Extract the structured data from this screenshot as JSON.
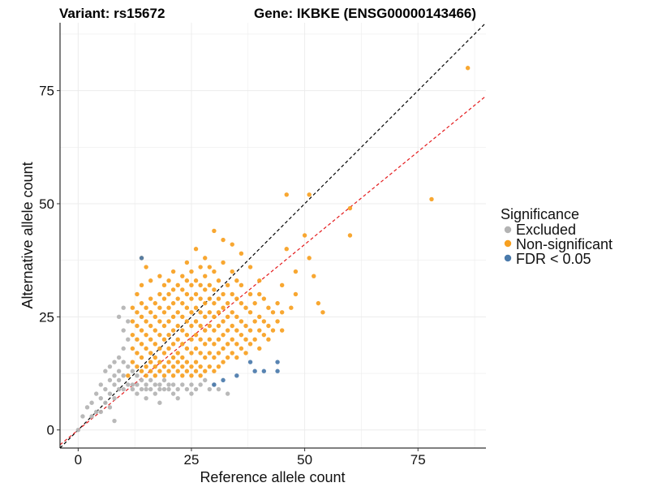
{
  "chart_data": {
    "type": "scatter",
    "title_left": "Variant: rs15672",
    "title_right": "Gene: IKBKE (ENSG00000143466)",
    "xlabel": "Reference allele count",
    "ylabel": "Alternative allele count",
    "xlim": [
      -4,
      90
    ],
    "ylim": [
      -4,
      90
    ],
    "xticks": [
      0,
      25,
      50,
      75
    ],
    "yticks": [
      0,
      25,
      50,
      75
    ],
    "grid": true,
    "legend": {
      "title": "Significance",
      "placement": "right",
      "entries": [
        {
          "label": "Excluded",
          "color": "#b3b3b3"
        },
        {
          "label": "Non-significant",
          "color": "#f7a020"
        },
        {
          "label": "FDR < 0.05",
          "color": "#4a7aab"
        }
      ]
    },
    "reference_lines": [
      {
        "name": "identity",
        "slope": 1.0,
        "intercept": 0,
        "color": "#000000",
        "dash": true
      },
      {
        "name": "fit",
        "slope": 0.82,
        "intercept": 0,
        "color": "#e41a1c",
        "dash": true
      }
    ],
    "series": [
      {
        "name": "Excluded",
        "color": "#b3b3b3",
        "points": [
          [
            0,
            0
          ],
          [
            1,
            3
          ],
          [
            2,
            5
          ],
          [
            3,
            6
          ],
          [
            3,
            3
          ],
          [
            4,
            4
          ],
          [
            4,
            8
          ],
          [
            5,
            7
          ],
          [
            5,
            4
          ],
          [
            5,
            10
          ],
          [
            6,
            6
          ],
          [
            6,
            9
          ],
          [
            6,
            13
          ],
          [
            7,
            5
          ],
          [
            7,
            8
          ],
          [
            7,
            11
          ],
          [
            7,
            14
          ],
          [
            8,
            7
          ],
          [
            8,
            10
          ],
          [
            8,
            12
          ],
          [
            8,
            15
          ],
          [
            8,
            2
          ],
          [
            9,
            9
          ],
          [
            9,
            11
          ],
          [
            9,
            13
          ],
          [
            9,
            16
          ],
          [
            10,
            9
          ],
          [
            10,
            12
          ],
          [
            10,
            15
          ],
          [
            10,
            18
          ],
          [
            10,
            22
          ],
          [
            11,
            10
          ],
          [
            11,
            14
          ],
          [
            11,
            20
          ],
          [
            11,
            24
          ],
          [
            12,
            10
          ],
          [
            12,
            13
          ],
          [
            12,
            9
          ],
          [
            13,
            10
          ],
          [
            13,
            12
          ],
          [
            13,
            8
          ],
          [
            14,
            9
          ],
          [
            14,
            11
          ],
          [
            15,
            9
          ],
          [
            15,
            10
          ],
          [
            15,
            7
          ],
          [
            16,
            9
          ],
          [
            16,
            11
          ],
          [
            17,
            10
          ],
          [
            17,
            8
          ],
          [
            18,
            9
          ],
          [
            18,
            10
          ],
          [
            18,
            6
          ],
          [
            19,
            9
          ],
          [
            19,
            11
          ],
          [
            20,
            9
          ],
          [
            20,
            10
          ],
          [
            21,
            8
          ],
          [
            21,
            10
          ],
          [
            22,
            9
          ],
          [
            22,
            7
          ],
          [
            23,
            10
          ],
          [
            24,
            9
          ],
          [
            25,
            10
          ],
          [
            25,
            8
          ],
          [
            26,
            9
          ],
          [
            27,
            10
          ],
          [
            28,
            11
          ],
          [
            29,
            9
          ],
          [
            30,
            10
          ],
          [
            31,
            9
          ],
          [
            33,
            8
          ],
          [
            9,
            25
          ],
          [
            10,
            27
          ]
        ]
      },
      {
        "name": "Non-significant",
        "color": "#f7a020",
        "points": [
          [
            11,
            12
          ],
          [
            12,
            15
          ],
          [
            12,
            18
          ],
          [
            12,
            21
          ],
          [
            12,
            24
          ],
          [
            13,
            14
          ],
          [
            13,
            17
          ],
          [
            13,
            20
          ],
          [
            13,
            23
          ],
          [
            13,
            26
          ],
          [
            14,
            13
          ],
          [
            14,
            16
          ],
          [
            14,
            19
          ],
          [
            14,
            22
          ],
          [
            14,
            25
          ],
          [
            14,
            28
          ],
          [
            14,
            32
          ],
          [
            15,
            12
          ],
          [
            15,
            14
          ],
          [
            15,
            18
          ],
          [
            15,
            21
          ],
          [
            15,
            24
          ],
          [
            15,
            27
          ],
          [
            16,
            13
          ],
          [
            16,
            15
          ],
          [
            16,
            17
          ],
          [
            16,
            20
          ],
          [
            16,
            23
          ],
          [
            16,
            26
          ],
          [
            16,
            29
          ],
          [
            16,
            33
          ],
          [
            17,
            12
          ],
          [
            17,
            14
          ],
          [
            17,
            16
          ],
          [
            17,
            19
          ],
          [
            17,
            22
          ],
          [
            17,
            25
          ],
          [
            17,
            28
          ],
          [
            18,
            13
          ],
          [
            18,
            15
          ],
          [
            18,
            18
          ],
          [
            18,
            21
          ],
          [
            18,
            24
          ],
          [
            18,
            27
          ],
          [
            18,
            30
          ],
          [
            18,
            34
          ],
          [
            19,
            12
          ],
          [
            19,
            14
          ],
          [
            19,
            17
          ],
          [
            19,
            20
          ],
          [
            19,
            23
          ],
          [
            19,
            26
          ],
          [
            19,
            29
          ],
          [
            19,
            32
          ],
          [
            20,
            13
          ],
          [
            20,
            15
          ],
          [
            20,
            18
          ],
          [
            20,
            21
          ],
          [
            20,
            24
          ],
          [
            20,
            27
          ],
          [
            20,
            30
          ],
          [
            20,
            33
          ],
          [
            21,
            12
          ],
          [
            21,
            14
          ],
          [
            21,
            16
          ],
          [
            21,
            19
          ],
          [
            21,
            22
          ],
          [
            21,
            25
          ],
          [
            21,
            28
          ],
          [
            21,
            31
          ],
          [
            21,
            35
          ],
          [
            22,
            13
          ],
          [
            22,
            15
          ],
          [
            22,
            17
          ],
          [
            22,
            20
          ],
          [
            22,
            23
          ],
          [
            22,
            26
          ],
          [
            22,
            29
          ],
          [
            22,
            32
          ],
          [
            23,
            12
          ],
          [
            23,
            14
          ],
          [
            23,
            16
          ],
          [
            23,
            19
          ],
          [
            23,
            22
          ],
          [
            23,
            25
          ],
          [
            23,
            28
          ],
          [
            23,
            31
          ],
          [
            23,
            34
          ],
          [
            24,
            13
          ],
          [
            24,
            15
          ],
          [
            24,
            18
          ],
          [
            24,
            21
          ],
          [
            24,
            24
          ],
          [
            24,
            27
          ],
          [
            24,
            30
          ],
          [
            24,
            33
          ],
          [
            24,
            37
          ],
          [
            25,
            12
          ],
          [
            25,
            14
          ],
          [
            25,
            17
          ],
          [
            25,
            20
          ],
          [
            25,
            23
          ],
          [
            25,
            26
          ],
          [
            25,
            29
          ],
          [
            25,
            32
          ],
          [
            25,
            35
          ],
          [
            26,
            13
          ],
          [
            26,
            15
          ],
          [
            26,
            18
          ],
          [
            26,
            21
          ],
          [
            26,
            24
          ],
          [
            26,
            27
          ],
          [
            26,
            30
          ],
          [
            26,
            33
          ],
          [
            26,
            40
          ],
          [
            27,
            12
          ],
          [
            27,
            14
          ],
          [
            27,
            17
          ],
          [
            27,
            20
          ],
          [
            27,
            23
          ],
          [
            27,
            26
          ],
          [
            27,
            29
          ],
          [
            27,
            32
          ],
          [
            27,
            36
          ],
          [
            28,
            13
          ],
          [
            28,
            16
          ],
          [
            28,
            19
          ],
          [
            28,
            22
          ],
          [
            28,
            25
          ],
          [
            28,
            28
          ],
          [
            28,
            31
          ],
          [
            28,
            34
          ],
          [
            28,
            38
          ],
          [
            29,
            14
          ],
          [
            29,
            17
          ],
          [
            29,
            20
          ],
          [
            29,
            23
          ],
          [
            29,
            26
          ],
          [
            29,
            29
          ],
          [
            29,
            32
          ],
          [
            29,
            36
          ],
          [
            30,
            13
          ],
          [
            30,
            16
          ],
          [
            30,
            19
          ],
          [
            30,
            22
          ],
          [
            30,
            25
          ],
          [
            30,
            28
          ],
          [
            30,
            31
          ],
          [
            30,
            35
          ],
          [
            30,
            44
          ],
          [
            31,
            14
          ],
          [
            31,
            17
          ],
          [
            31,
            20
          ],
          [
            31,
            23
          ],
          [
            31,
            26
          ],
          [
            31,
            29
          ],
          [
            31,
            33
          ],
          [
            32,
            15
          ],
          [
            32,
            18
          ],
          [
            32,
            21
          ],
          [
            32,
            24
          ],
          [
            32,
            27
          ],
          [
            32,
            30
          ],
          [
            32,
            37
          ],
          [
            32,
            42
          ],
          [
            33,
            16
          ],
          [
            33,
            19
          ],
          [
            33,
            22
          ],
          [
            33,
            25
          ],
          [
            33,
            28
          ],
          [
            33,
            32
          ],
          [
            34,
            17
          ],
          [
            34,
            20
          ],
          [
            34,
            23
          ],
          [
            34,
            26
          ],
          [
            34,
            30
          ],
          [
            34,
            35
          ],
          [
            34,
            41
          ],
          [
            35,
            16
          ],
          [
            35,
            19
          ],
          [
            35,
            22
          ],
          [
            35,
            25
          ],
          [
            35,
            29
          ],
          [
            35,
            33
          ],
          [
            36,
            18
          ],
          [
            36,
            21
          ],
          [
            36,
            24
          ],
          [
            36,
            28
          ],
          [
            36,
            32
          ],
          [
            36,
            39
          ],
          [
            37,
            17
          ],
          [
            37,
            20
          ],
          [
            37,
            23
          ],
          [
            37,
            27
          ],
          [
            38,
            19
          ],
          [
            38,
            22
          ],
          [
            38,
            26
          ],
          [
            38,
            30
          ],
          [
            38,
            36
          ],
          [
            39,
            20
          ],
          [
            39,
            24
          ],
          [
            39,
            28
          ],
          [
            40,
            18
          ],
          [
            40,
            22
          ],
          [
            40,
            25
          ],
          [
            40,
            30
          ],
          [
            40,
            33
          ],
          [
            41,
            21
          ],
          [
            41,
            24
          ],
          [
            41,
            29
          ],
          [
            42,
            20
          ],
          [
            42,
            23
          ],
          [
            42,
            27
          ],
          [
            43,
            22
          ],
          [
            43,
            26
          ],
          [
            44,
            24
          ],
          [
            44,
            28
          ],
          [
            45,
            22
          ],
          [
            45,
            26
          ],
          [
            45,
            32
          ],
          [
            46,
            52
          ],
          [
            46,
            40
          ],
          [
            47,
            27
          ],
          [
            48,
            35
          ],
          [
            48,
            30
          ],
          [
            50,
            43
          ],
          [
            51,
            38
          ],
          [
            51,
            52
          ],
          [
            52,
            34
          ],
          [
            53,
            28
          ],
          [
            54,
            26
          ],
          [
            60,
            49
          ],
          [
            60,
            43
          ],
          [
            78,
            51
          ],
          [
            86,
            80
          ],
          [
            14,
            38
          ],
          [
            15,
            36
          ],
          [
            13,
            30
          ],
          [
            12,
            27
          ]
        ]
      },
      {
        "name": "FDR < 0.05",
        "color": "#4a7aab",
        "points": [
          [
            14,
            38
          ],
          [
            30,
            10
          ],
          [
            32,
            11
          ],
          [
            35,
            12
          ],
          [
            38,
            15
          ],
          [
            39,
            13
          ],
          [
            41,
            13
          ],
          [
            44,
            13
          ],
          [
            44,
            15
          ]
        ]
      }
    ]
  }
}
